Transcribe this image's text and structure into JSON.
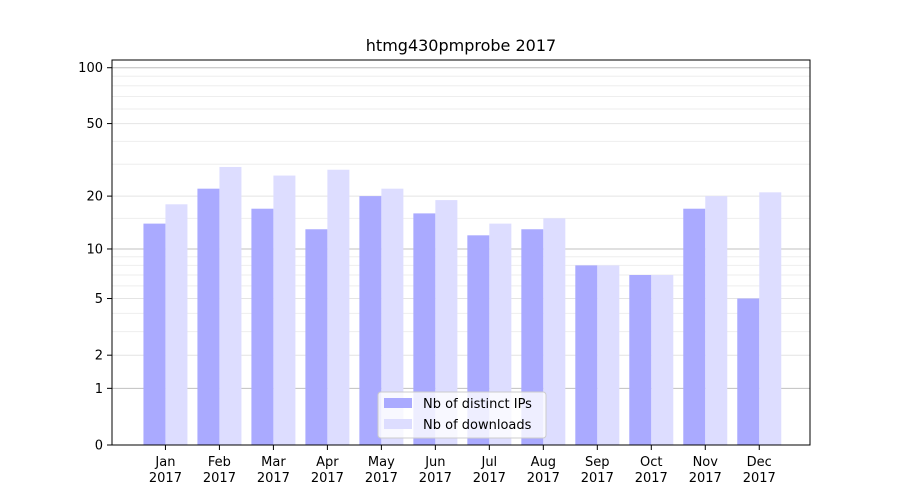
{
  "chart_data": {
    "type": "bar",
    "title": "htmg430pmprobe 2017",
    "xlabel": "",
    "ylabel": "",
    "scale": "log(1+y)",
    "ylim": [
      0,
      110
    ],
    "yticks": [
      0,
      1,
      2,
      5,
      10,
      20,
      50,
      100
    ],
    "categories": [
      [
        "Jan",
        "2017"
      ],
      [
        "Feb",
        "2017"
      ],
      [
        "Mar",
        "2017"
      ],
      [
        "Apr",
        "2017"
      ],
      [
        "May",
        "2017"
      ],
      [
        "Jun",
        "2017"
      ],
      [
        "Jul",
        "2017"
      ],
      [
        "Aug",
        "2017"
      ],
      [
        "Sep",
        "2017"
      ],
      [
        "Oct",
        "2017"
      ],
      [
        "Nov",
        "2017"
      ],
      [
        "Dec",
        "2017"
      ]
    ],
    "series": [
      {
        "name": "Nb of distinct IPs",
        "color": "#aaaaff",
        "values": [
          14,
          22,
          17,
          13,
          20,
          16,
          12,
          13,
          8,
          7,
          17,
          5
        ]
      },
      {
        "name": "Nb of downloads",
        "color": "#ddddff",
        "values": [
          18,
          29,
          26,
          28,
          22,
          19,
          14,
          15,
          8,
          7,
          20,
          21
        ]
      }
    ],
    "legend": "lower-center",
    "grid": "major and minor horizontal lines"
  }
}
